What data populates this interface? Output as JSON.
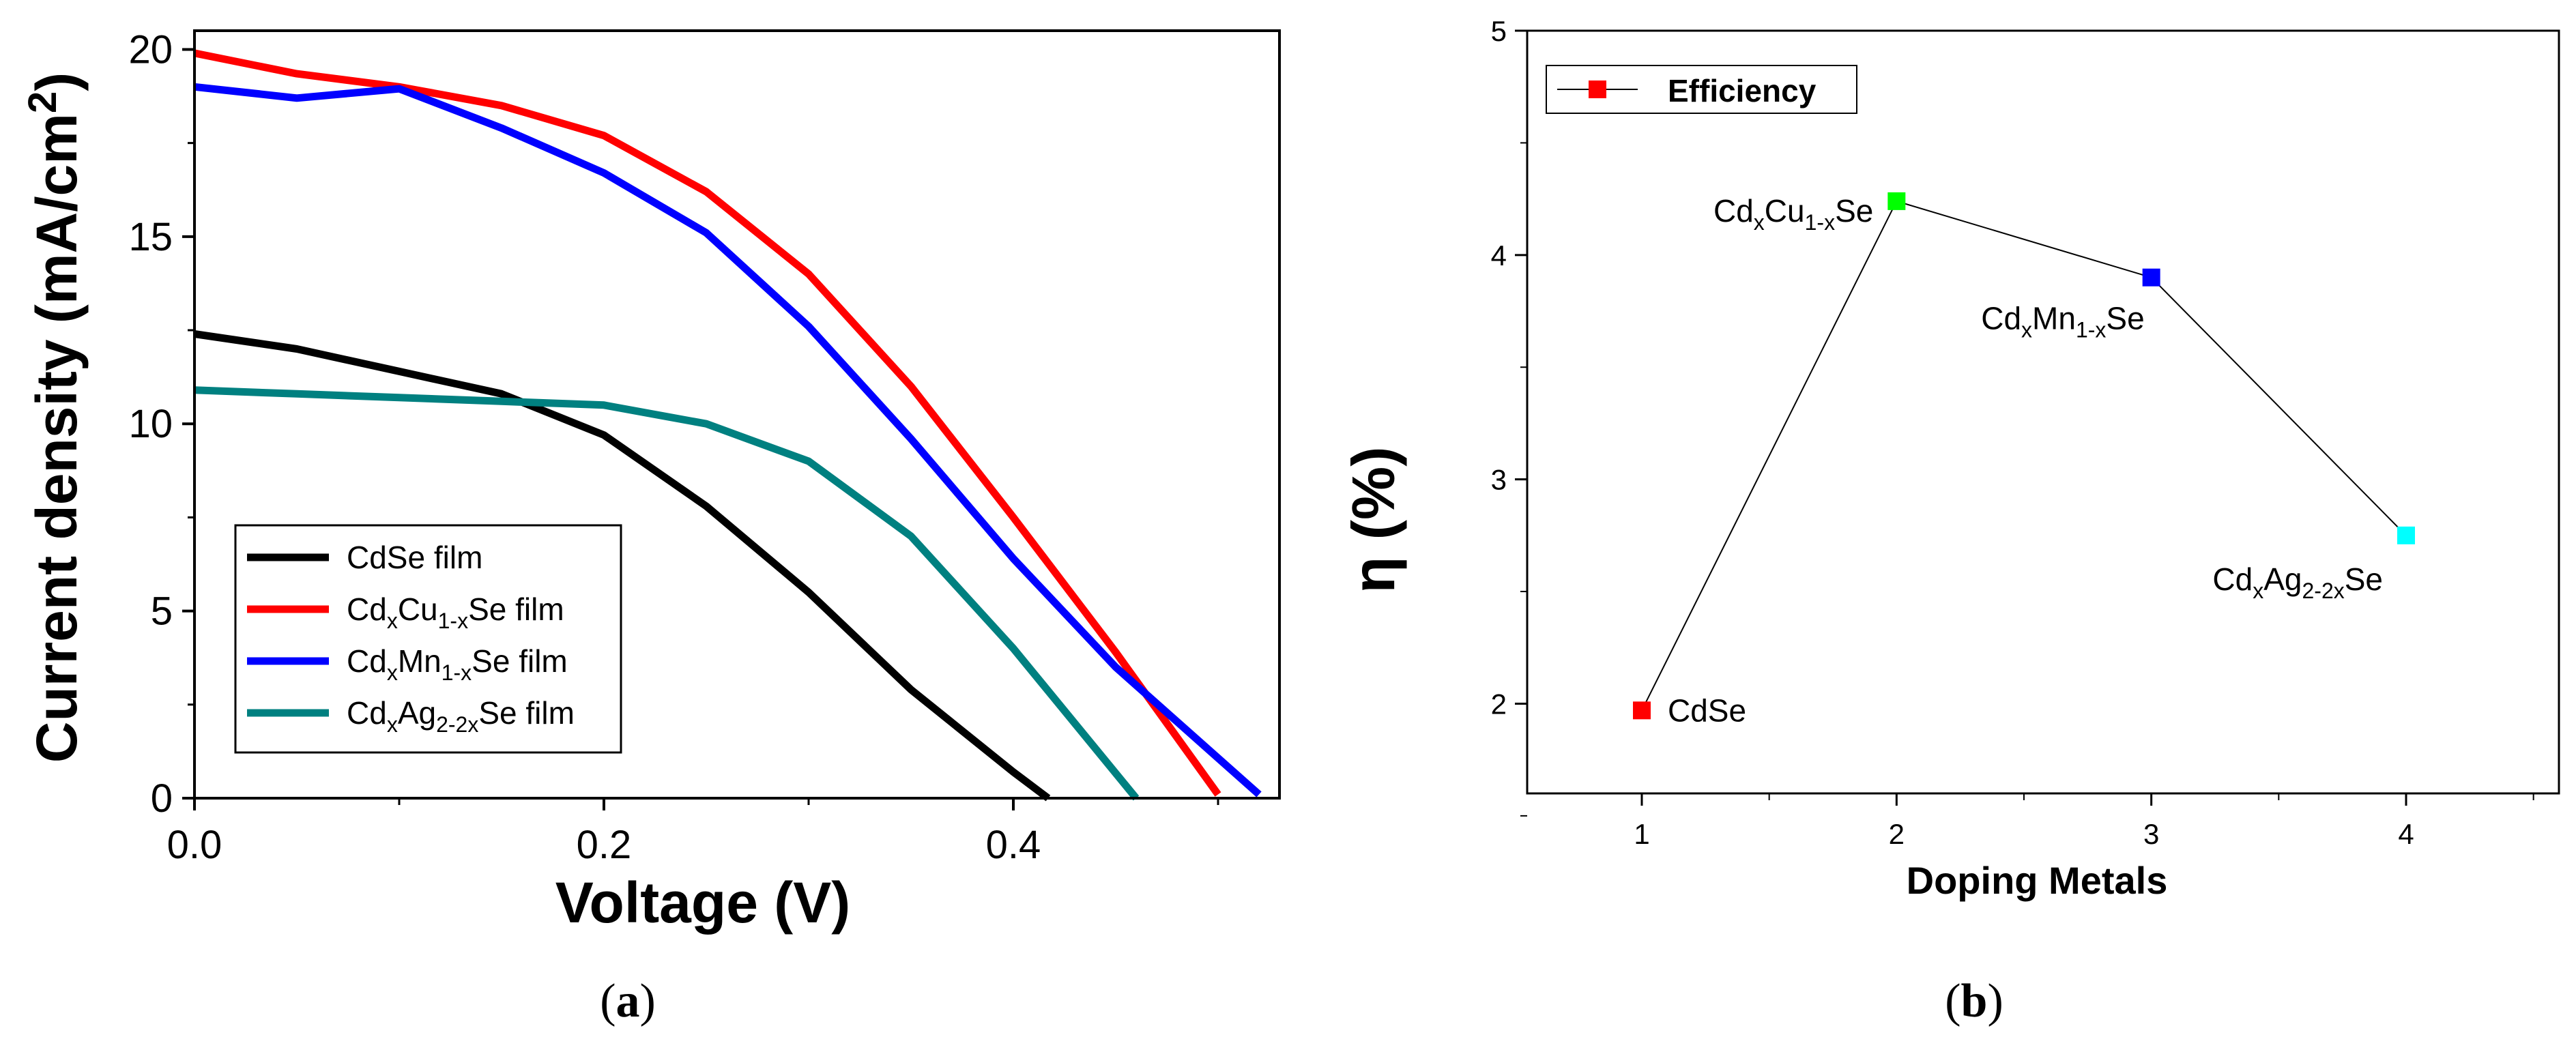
{
  "chart_data": [
    {
      "panel": "a",
      "panel_label_open": "(",
      "panel_label_letter": "a",
      "panel_label_close": ")",
      "type": "line",
      "title": "",
      "xlabel": "Voltage (V)",
      "ylabel": "Current density (mA/cm",
      "ylabel_sup": "2",
      "ylabel_close": ")",
      "xlim": [
        0,
        0.53
      ],
      "ylim": [
        0,
        20.5
      ],
      "xticks": [
        0.0,
        0.2,
        0.4
      ],
      "xtick_labels": [
        "0.0",
        "0.2",
        "0.4"
      ],
      "yticks": [
        0,
        5,
        10,
        15,
        20
      ],
      "ytick_labels": [
        "0",
        "5",
        "10",
        "15",
        "20"
      ],
      "grid": false,
      "legend_position": "lower-left",
      "series": [
        {
          "color": "#000000",
          "legend": [
            {
              "t": "CdSe film"
            }
          ],
          "x": [
            0,
            0.05,
            0.1,
            0.15,
            0.2,
            0.25,
            0.3,
            0.35,
            0.4,
            0.417
          ],
          "y": [
            12.4,
            12.0,
            11.4,
            10.8,
            9.7,
            7.8,
            5.5,
            2.9,
            0.7,
            0
          ]
        },
        {
          "color": "#ff0000",
          "legend": [
            {
              "t": "Cd"
            },
            {
              "t": "x",
              "s": "sub"
            },
            {
              "t": "Cu"
            },
            {
              "t": "1-x",
              "s": "sub"
            },
            {
              "t": "Se film"
            }
          ],
          "x": [
            0,
            0.05,
            0.1,
            0.15,
            0.2,
            0.25,
            0.3,
            0.35,
            0.4,
            0.45,
            0.5
          ],
          "y": [
            19.9,
            19.35,
            19.0,
            18.5,
            17.7,
            16.2,
            14.0,
            11.0,
            7.5,
            3.9,
            0.1
          ]
        },
        {
          "color": "#0000ff",
          "legend": [
            {
              "t": "Cd"
            },
            {
              "t": "x",
              "s": "sub"
            },
            {
              "t": "Mn"
            },
            {
              "t": "1-x",
              "s": "sub"
            },
            {
              "t": "Se film"
            }
          ],
          "x": [
            0,
            0.05,
            0.1,
            0.15,
            0.2,
            0.25,
            0.3,
            0.35,
            0.4,
            0.45,
            0.52
          ],
          "y": [
            19.0,
            18.7,
            18.95,
            17.9,
            16.7,
            15.1,
            12.6,
            9.6,
            6.4,
            3.5,
            0.1
          ]
        },
        {
          "color": "#008080",
          "legend": [
            {
              "t": "Cd"
            },
            {
              "t": "x",
              "s": "sub"
            },
            {
              "t": "Ag"
            },
            {
              "t": "2-2x",
              "s": "sub"
            },
            {
              "t": "Se film"
            }
          ],
          "x": [
            0,
            0.05,
            0.1,
            0.15,
            0.2,
            0.25,
            0.3,
            0.35,
            0.4,
            0.46
          ],
          "y": [
            10.9,
            10.8,
            10.7,
            10.6,
            10.5,
            10.0,
            9.0,
            7.0,
            4.0,
            0
          ]
        }
      ]
    },
    {
      "panel": "b",
      "panel_label_open": "(",
      "panel_label_letter": "b",
      "panel_label_close": ")",
      "type": "line",
      "title": "",
      "xlabel": "Doping Metals",
      "ylabel": "η (%)",
      "xlim": [
        0.55,
        4.6
      ],
      "ylim": [
        1.6,
        5.0
      ],
      "xticks": [
        1,
        2,
        3,
        4
      ],
      "xtick_labels": [
        "1",
        "2",
        "3",
        "4"
      ],
      "yticks": [
        2,
        3,
        4,
        5
      ],
      "ytick_labels": [
        "2",
        "3",
        "4",
        "5"
      ],
      "grid": false,
      "legend_position": "top-left",
      "legend_label": "Efficiency",
      "series": [
        {
          "name": "Efficiency",
          "line_color": "#000000",
          "x": [
            1,
            2,
            3,
            4
          ],
          "y": [
            1.97,
            4.24,
            3.9,
            2.75
          ],
          "marker_colors": [
            "#ff0000",
            "#00ff00",
            "#0000ff",
            "#00ffff"
          ],
          "point_labels": [
            [
              {
                "t": "CdSe"
              }
            ],
            [
              {
                "t": "Cd"
              },
              {
                "t": "x",
                "s": "sub"
              },
              {
                "t": "Cu"
              },
              {
                "t": "1-x",
                "s": "sub"
              },
              {
                "t": "Se"
              }
            ],
            [
              {
                "t": "Cd"
              },
              {
                "t": "x",
                "s": "sub"
              },
              {
                "t": "Mn"
              },
              {
                "t": "1-x",
                "s": "sub"
              },
              {
                "t": "Se"
              }
            ],
            [
              {
                "t": "Cd"
              },
              {
                "t": "x",
                "s": "sub"
              },
              {
                "t": "Ag"
              },
              {
                "t": "2-2x",
                "s": "sub"
              },
              {
                "t": "Se"
              }
            ]
          ]
        }
      ]
    }
  ]
}
